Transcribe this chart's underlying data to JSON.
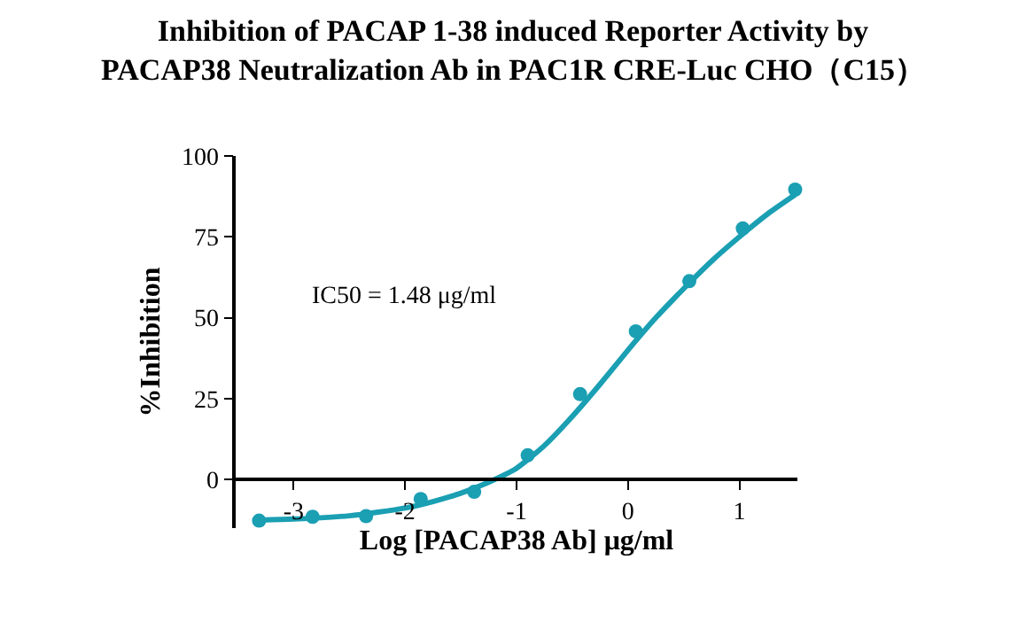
{
  "chart_data": {
    "type": "scatter",
    "title": "Inhibition of PACAP 1-38 induced Reporter Activity by\nPACAP38 Neutralization Ab in PAC1R CRE-Luc CHO（C15）",
    "xlabel": "Log [PACAP38 Ab] μg/ml",
    "ylabel": "%Inhibition",
    "annotations": [
      "IC50 = 1.48 μg/ml"
    ],
    "xlim": [
      -3.52,
      1.52
    ],
    "xticks": [
      -3,
      -2,
      -1,
      0,
      1
    ],
    "ylim": [
      -15,
      100
    ],
    "yticks": [
      0,
      25,
      50,
      75,
      100
    ],
    "grid": false,
    "marker": "circle",
    "series": [
      {
        "type": "scatter",
        "color": "#1a9fb3",
        "x": [
          -3.31,
          -2.83,
          -2.35,
          -1.86,
          -1.38,
          -0.9,
          -0.43,
          0.07,
          0.55,
          1.03,
          1.5
        ],
        "values": [
          -12.7,
          -11.5,
          -11.3,
          -6,
          -3.8,
          7.5,
          26.4,
          45.8,
          61.3,
          77.6,
          89.6
        ]
      },
      {
        "type": "line",
        "color": "#1a9fb3",
        "marker": "none",
        "line_style": "solid",
        "x": [
          -3.3,
          -3,
          -2.5,
          -2,
          -1.75,
          -1.5,
          -1.25,
          -1,
          -0.75,
          -0.5,
          -0.25,
          0,
          0.25,
          0.5,
          0.75,
          1,
          1.25,
          1.5
        ],
        "values": [
          -12.5,
          -12.2,
          -11.2,
          -8.8,
          -6.8,
          -4.2,
          -0.8,
          3.5,
          10.5,
          19.5,
          29.5,
          40,
          50,
          59,
          67.5,
          75,
          82,
          88
        ]
      }
    ]
  }
}
